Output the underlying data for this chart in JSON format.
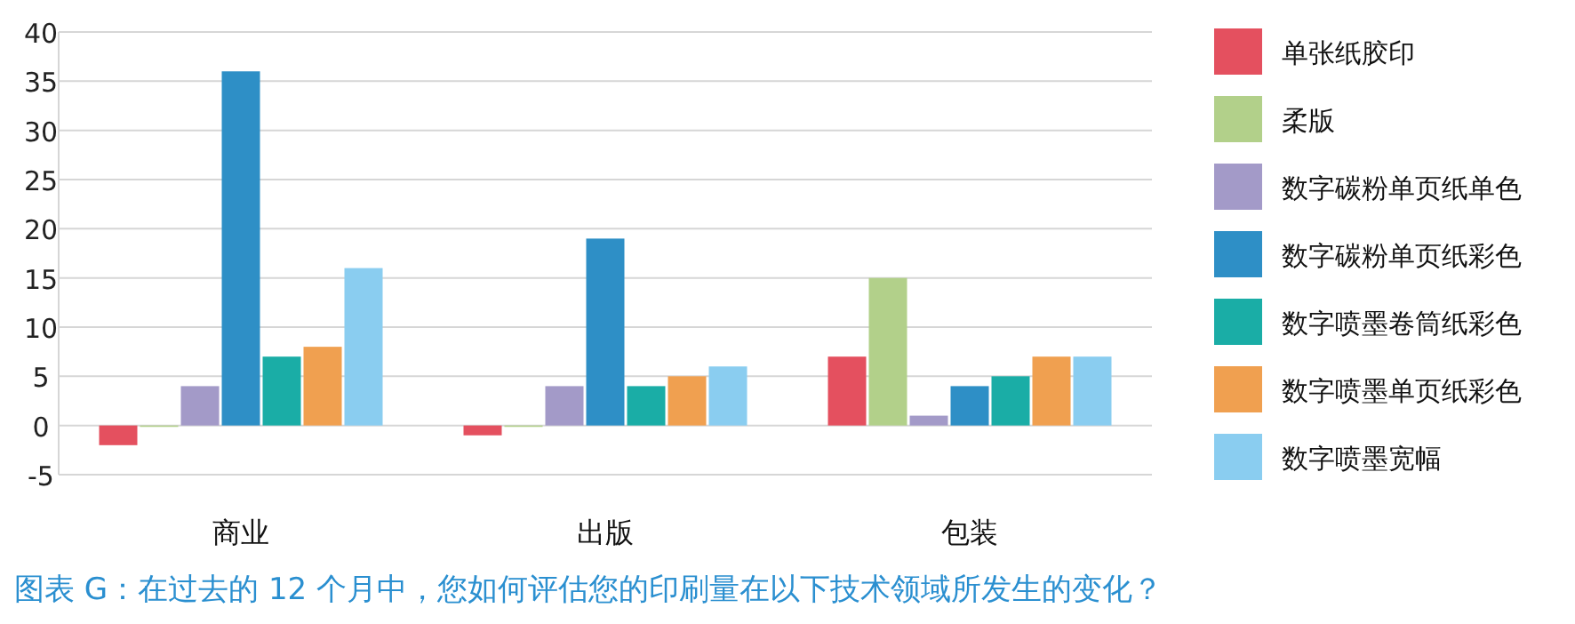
{
  "chart_data": {
    "type": "bar",
    "title": "图表 G：在过去的 12 个月中，您如何评估您的印刷量在以下技术领域所发生的变化？",
    "categories": [
      "商业",
      "出版",
      "包装"
    ],
    "series": [
      {
        "name": "单张纸胶印",
        "color": "#e4505f",
        "values": [
          -2,
          -1,
          7
        ]
      },
      {
        "name": "柔版",
        "color": "#b2d08a",
        "values": [
          0,
          0,
          15
        ]
      },
      {
        "name": "数字碳粉单页纸单色",
        "color": "#a39ac8",
        "values": [
          4,
          4,
          1
        ]
      },
      {
        "name": "数字碳粉单页纸彩色",
        "color": "#2e8fc6",
        "values": [
          36,
          19,
          4
        ]
      },
      {
        "name": "数字喷墨卷筒纸彩色",
        "color": "#1aada6",
        "values": [
          7,
          4,
          5
        ]
      },
      {
        "name": "数字喷墨单页纸彩色",
        "color": "#f0a050",
        "values": [
          8,
          5,
          7
        ]
      },
      {
        "name": "数字喷墨宽幅",
        "color": "#8acdf0",
        "values": [
          16,
          6,
          7
        ]
      }
    ],
    "ylim": [
      -5,
      40
    ],
    "yticks": [
      -5,
      0,
      5,
      10,
      15,
      20,
      25,
      30,
      35,
      40
    ],
    "grid": "y",
    "legend": "right"
  }
}
